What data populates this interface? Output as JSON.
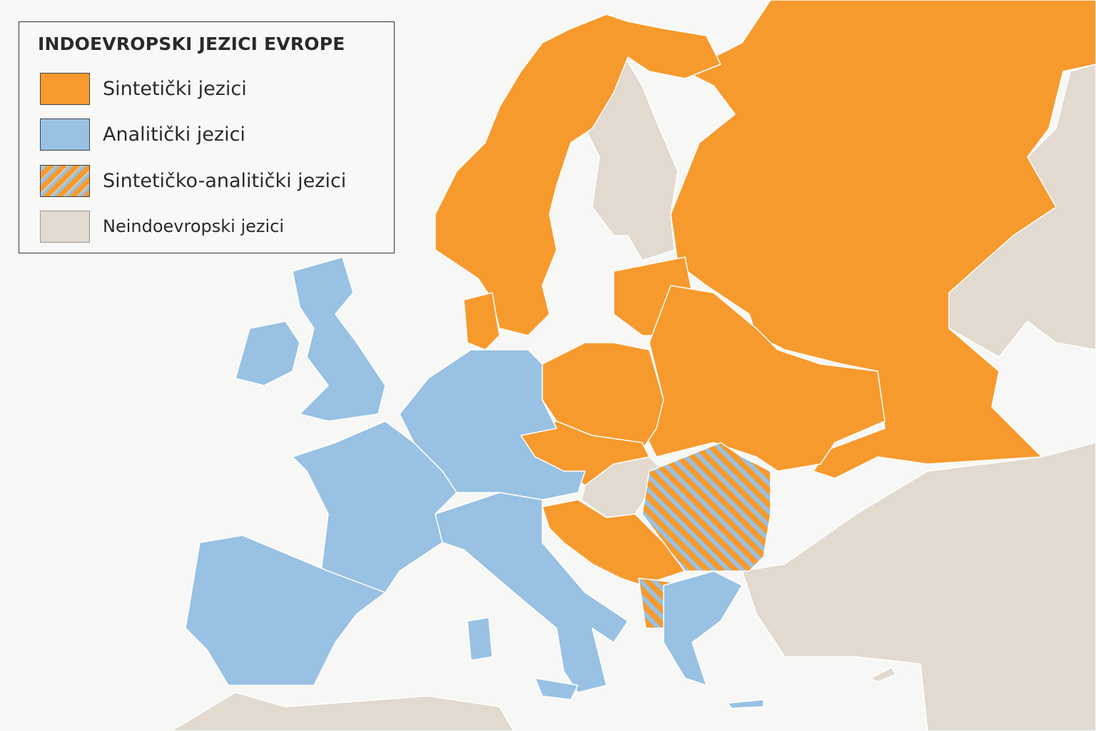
{
  "legend": {
    "title": "INDOEVROPSKI JEZICI EVROPE",
    "items": [
      {
        "label": "Sintetički jezici",
        "color": "#F79A2E",
        "pattern": "solid"
      },
      {
        "label": "Analitički jezici",
        "color": "#98C1E3",
        "pattern": "solid"
      },
      {
        "label": "Sintetičko-analitički jezici",
        "color": "#F79A2E",
        "color2": "#98C1E3",
        "pattern": "diagonal-stripes"
      },
      {
        "label": "Neindoevropski jezici",
        "color": "#E2D9CF",
        "pattern": "solid"
      }
    ]
  },
  "colors": {
    "background": "#F7F7F5",
    "synthetic": "#F79A2E",
    "analytic": "#98C1E3",
    "non_indo_european": "#E2D9CF"
  }
}
